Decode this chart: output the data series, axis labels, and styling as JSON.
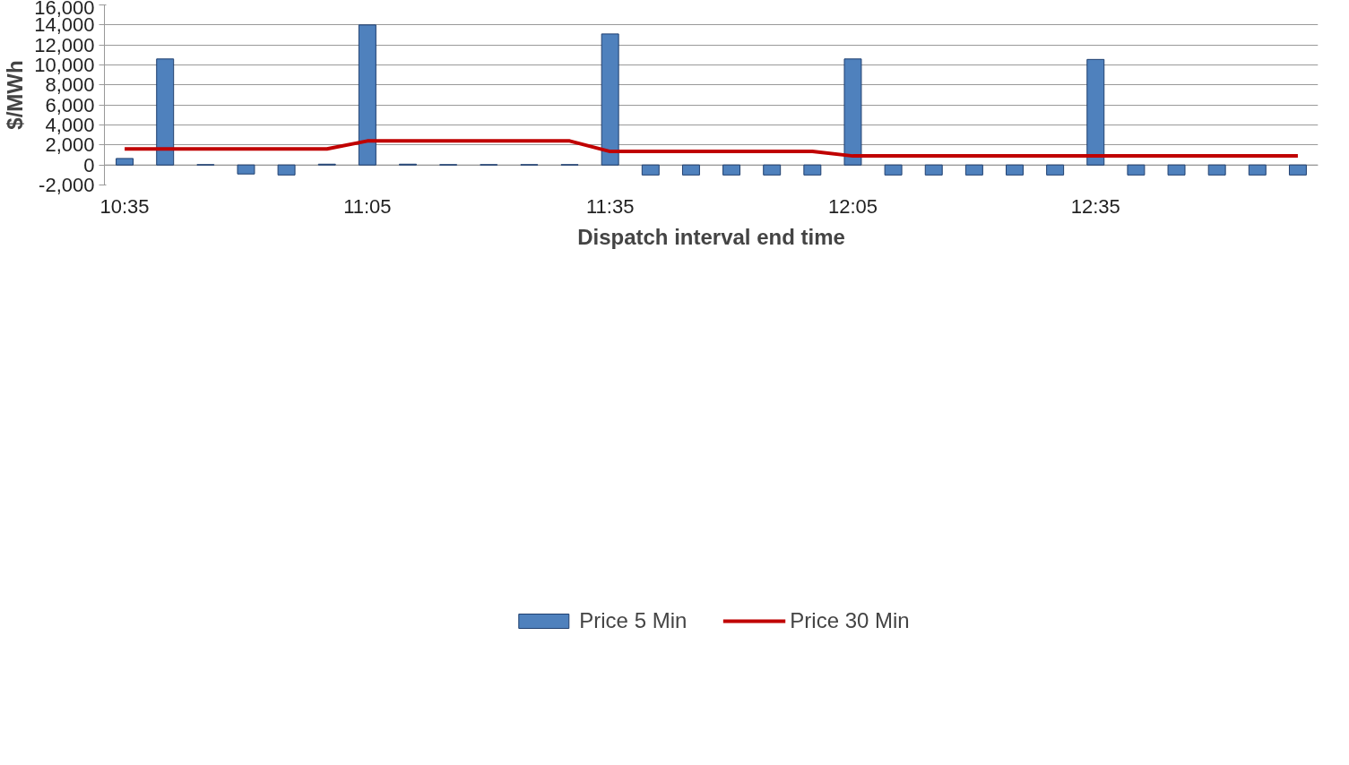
{
  "chart_data": {
    "type": "bar",
    "xlabel": "Dispatch interval end time",
    "ylabel": "$/MWh",
    "categories": [
      "10:35",
      null,
      null,
      null,
      null,
      null,
      "11:05",
      null,
      null,
      null,
      null,
      null,
      "11:35",
      null,
      null,
      null,
      null,
      null,
      "12:05",
      null,
      null,
      null,
      null,
      null,
      "12:35",
      null,
      null,
      null,
      null,
      null
    ],
    "series": [
      {
        "name": "Price 5 Min",
        "color": "#4f81bd",
        "values": [
          650,
          10600,
          30,
          -900,
          -1000,
          80,
          14000,
          80,
          30,
          30,
          30,
          30,
          13100,
          -1000,
          -1000,
          -1000,
          -1000,
          -1000,
          10600,
          -1000,
          -1000,
          -1000,
          -1000,
          -1000,
          10550,
          -1000,
          -1000,
          -1000,
          -1000,
          -1000
        ]
      },
      {
        "name": "Price 30 Min",
        "type": "line",
        "color": "#c00000",
        "values": [
          1600,
          1600,
          1600,
          1600,
          1600,
          1600,
          2400,
          2400,
          2400,
          2400,
          2400,
          2400,
          1350,
          1350,
          1350,
          1350,
          1350,
          1350,
          900,
          900,
          900,
          900,
          900,
          900,
          900,
          900,
          900,
          900,
          900,
          900
        ]
      }
    ],
    "ylim": [
      -2000,
      16000
    ],
    "yticks": [
      {
        "value": -2000,
        "label": "-2,000"
      },
      0,
      {
        "value": 2000,
        "label": "2,000"
      },
      {
        "value": 4000,
        "label": "4,000"
      },
      {
        "value": 6000,
        "label": "6,000"
      },
      {
        "value": 8000,
        "label": "8,000"
      },
      {
        "value": 10000,
        "label": "10,000"
      },
      {
        "value": 12000,
        "label": "12,000"
      },
      {
        "value": 14000,
        "label": "14,000"
      },
      {
        "value": 16000,
        "label": "16,000"
      }
    ],
    "grid": "y",
    "legend": "bottom"
  }
}
